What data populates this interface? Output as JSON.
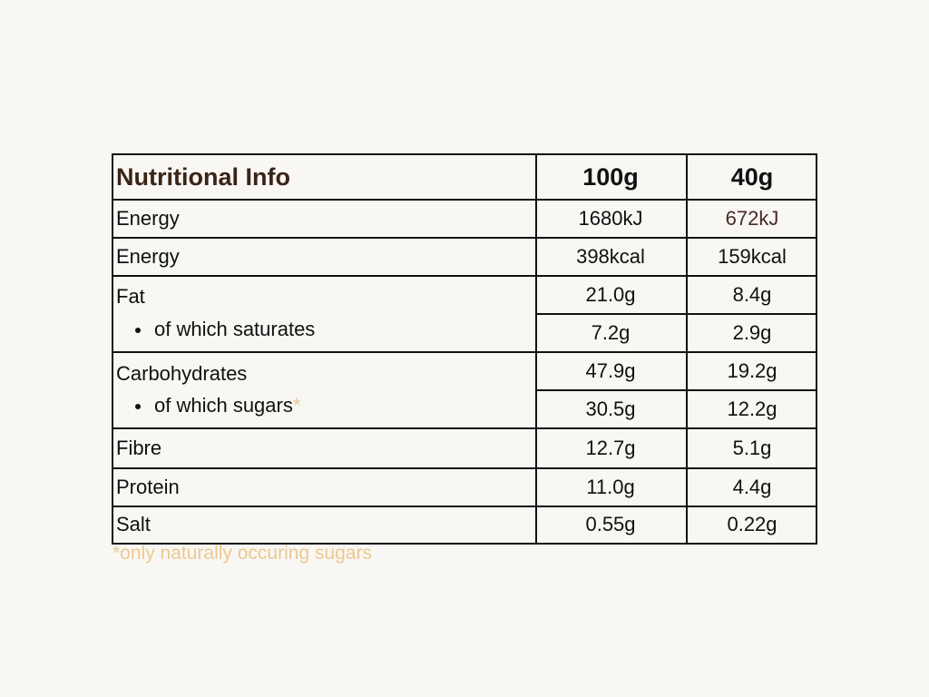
{
  "table": {
    "header": {
      "title": "Nutritional Info",
      "col_100g": "100g",
      "col_40g": "40g"
    },
    "rows": [
      {
        "label": "Energy",
        "v100": "1680kJ",
        "v40": "672kJ"
      },
      {
        "label": "Energy",
        "v100": "398kcal",
        "v40": "159kcal"
      },
      {
        "label": "Fat",
        "v100": "21.0g",
        "v40": "8.4g"
      },
      {
        "label": "of which saturates",
        "v100": "7.2g",
        "v40": "2.9g"
      },
      {
        "label": "Carbohydrates",
        "v100": "47.9g",
        "v40": "19.2g"
      },
      {
        "label": "of which sugars",
        "marker": "*",
        "v100": "30.5g",
        "v40": "12.2g"
      },
      {
        "label": "Fibre",
        "v100": "12.7g",
        "v40": "5.1g"
      },
      {
        "label": "Protein",
        "v100": "11.0g",
        "v40": "4.4g"
      },
      {
        "label": "Salt",
        "v100": "0.55g",
        "v40": "0.22g"
      }
    ]
  },
  "footnote": "*only naturally occuring sugars",
  "colors": {
    "background": "#f8f7f3",
    "border": "#111111",
    "header_title": "#3a2418",
    "accent_value": "#4a2a26",
    "footnote": "#ecc991"
  }
}
